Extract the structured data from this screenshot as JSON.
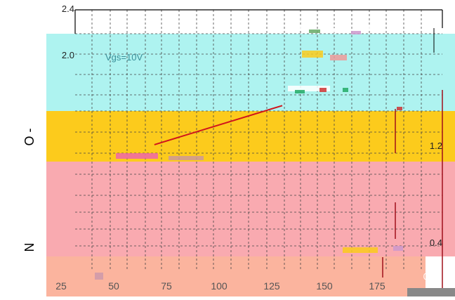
{
  "chart_data": {
    "type": "line",
    "title": "",
    "xlabel": "",
    "ylabel": "",
    "ylabel_fragments": [
      "O -",
      "N"
    ],
    "annotations": [
      "Vgs=10V"
    ],
    "x_ticks": [
      25,
      50,
      75,
      100,
      125,
      150,
      175
    ],
    "y_ticks_left": [
      "2.4",
      "2.0"
    ],
    "y_ticks_right": [
      "1.2",
      "0.4",
      "0"
    ],
    "xlim": [
      25,
      175
    ],
    "ylim": [
      0,
      2.4
    ],
    "grid": true,
    "series": [
      {
        "x": [
          69.3,
          130
        ],
        "y": [
          1.16,
          1.52
        ]
      }
    ],
    "colors": {
      "band_cyan": "#aef3f0",
      "band_yellow": "#fccb1c",
      "band_pink": "#f9aab0",
      "band_salmon": "#fbb49e",
      "line_red": "#d0141c",
      "dark_red": "#a0101a",
      "grid": "#444444"
    }
  }
}
